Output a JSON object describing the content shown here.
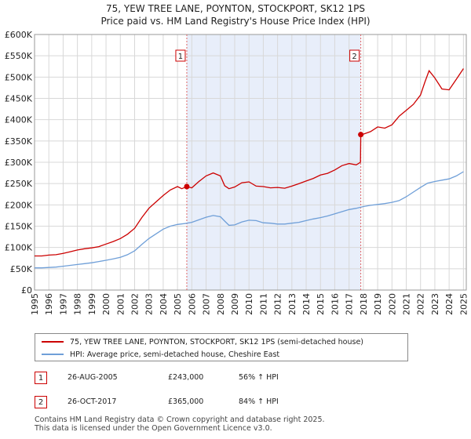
{
  "header": {
    "title": "75, YEW TREE LANE, POYNTON, STOCKPORT, SK12 1PS",
    "subtitle": "Price paid vs. HM Land Registry's House Price Index (HPI)"
  },
  "colors": {
    "price_line": "#cc0000",
    "hpi_line": "#6f9fd8",
    "shade": "#e8eefa",
    "marker_line": "#e06666",
    "grid": "#d8d8d8"
  },
  "chart_data": {
    "type": "line",
    "title": "75, YEW TREE LANE, POYNTON, STOCKPORT, SK12 1PS",
    "xlim": [
      1995,
      2025.2
    ],
    "ylim": [
      0,
      600000
    ],
    "y_ticks": [
      0,
      50000,
      100000,
      150000,
      200000,
      250000,
      300000,
      350000,
      400000,
      450000,
      500000,
      550000,
      600000
    ],
    "y_tick_labels": [
      "£0",
      "£50K",
      "£100K",
      "£150K",
      "£200K",
      "£250K",
      "£300K",
      "£350K",
      "£400K",
      "£450K",
      "£500K",
      "£550K",
      "£600K"
    ],
    "x_ticks": [
      1995,
      1996,
      1997,
      1998,
      1999,
      2000,
      2001,
      2002,
      2003,
      2004,
      2005,
      2006,
      2007,
      2008,
      2009,
      2010,
      2011,
      2012,
      2013,
      2014,
      2015,
      2016,
      2017,
      2018,
      2019,
      2020,
      2021,
      2022,
      2023,
      2024,
      2025
    ],
    "x_tick_labels": [
      "1995",
      "1996",
      "1997",
      "1998",
      "1999",
      "2000",
      "2001",
      "2002",
      "2003",
      "2004",
      "2005",
      "2006",
      "2007",
      "2008",
      "2009",
      "2010",
      "2011",
      "2012",
      "2013",
      "2014",
      "2015",
      "2016",
      "2017",
      "2018",
      "2019",
      "2020",
      "2021",
      "2022",
      "2023",
      "2024",
      "2025"
    ],
    "grid": true,
    "shaded_span": [
      2005.65,
      2017.82
    ],
    "markers": [
      {
        "label": "1",
        "x": 2005.65,
        "y": 243000
      },
      {
        "label": "2",
        "x": 2017.82,
        "y": 365000
      }
    ],
    "series": [
      {
        "name": "75, YEW TREE LANE, POYNTON, STOCKPORT, SK12 1PS (semi-detached house)",
        "x": [
          1995,
          1995.5,
          1996,
          1996.5,
          1997,
          1997.5,
          1998,
          1998.5,
          1999,
          1999.5,
          2000,
          2000.5,
          2001,
          2001.5,
          2002,
          2002.5,
          2003,
          2003.5,
          2004,
          2004.5,
          2005,
          2005.3,
          2005.65,
          2006,
          2006.5,
          2007,
          2007.5,
          2008,
          2008.3,
          2008.6,
          2009,
          2009.5,
          2010,
          2010.5,
          2011,
          2011.5,
          2012,
          2012.5,
          2013,
          2013.5,
          2014,
          2014.5,
          2015,
          2015.5,
          2016,
          2016.5,
          2017,
          2017.5,
          2017.8,
          2017.82,
          2018,
          2018.5,
          2019,
          2019.5,
          2020,
          2020.5,
          2021,
          2021.5,
          2022,
          2022.3,
          2022.6,
          2023,
          2023.5,
          2024,
          2024.5,
          2025
        ],
        "values": [
          80000,
          80000,
          82000,
          83000,
          86000,
          90000,
          94000,
          97000,
          99000,
          102000,
          108000,
          114000,
          121000,
          131000,
          145000,
          170000,
          192000,
          207000,
          222000,
          235000,
          243000,
          238000,
          243000,
          240000,
          255000,
          268000,
          275000,
          268000,
          245000,
          238000,
          242000,
          252000,
          254000,
          244000,
          243000,
          240000,
          241000,
          239000,
          244000,
          250000,
          256000,
          262000,
          270000,
          274000,
          282000,
          292000,
          297000,
          294000,
          300000,
          365000,
          366000,
          372000,
          383000,
          380000,
          388000,
          408000,
          422000,
          436000,
          458000,
          488000,
          515000,
          498000,
          472000,
          470000,
          495000,
          520000
        ]
      },
      {
        "name": "HPI: Average price, semi-detached house, Cheshire East",
        "x": [
          1995,
          1995.5,
          1996,
          1996.5,
          1997,
          1997.5,
          1998,
          1998.5,
          1999,
          1999.5,
          2000,
          2000.5,
          2001,
          2001.5,
          2002,
          2002.5,
          2003,
          2003.5,
          2004,
          2004.5,
          2005,
          2005.5,
          2006,
          2006.5,
          2007,
          2007.5,
          2008,
          2008.3,
          2008.6,
          2009,
          2009.5,
          2010,
          2010.5,
          2011,
          2011.5,
          2012,
          2012.5,
          2013,
          2013.5,
          2014,
          2014.5,
          2015,
          2015.5,
          2016,
          2016.5,
          2017,
          2017.5,
          2018,
          2018.5,
          2019,
          2019.5,
          2020,
          2020.5,
          2021,
          2021.5,
          2022,
          2022.5,
          2023,
          2023.5,
          2024,
          2024.5,
          2025
        ],
        "values": [
          52000,
          52000,
          53000,
          54000,
          56000,
          58000,
          60000,
          62000,
          64000,
          67000,
          70000,
          73000,
          77000,
          83000,
          92000,
          107000,
          121000,
          132000,
          143000,
          150000,
          154000,
          156000,
          159000,
          165000,
          171000,
          175000,
          172000,
          162000,
          152000,
          153000,
          160000,
          164000,
          163000,
          158000,
          157000,
          155000,
          155000,
          157000,
          159000,
          163000,
          167000,
          170000,
          174000,
          179000,
          184000,
          189000,
          192000,
          196000,
          199000,
          201000,
          203000,
          206000,
          210000,
          219000,
          230000,
          241000,
          251000,
          255000,
          258000,
          261000,
          268000,
          278000
        ]
      }
    ]
  },
  "legend": {
    "price_label": "75, YEW TREE LANE, POYNTON, STOCKPORT, SK12 1PS (semi-detached house)",
    "hpi_label": "HPI: Average price, semi-detached house, Cheshire East"
  },
  "transactions": [
    {
      "badge": "1",
      "date": "26-AUG-2005",
      "price": "£243,000",
      "hpi": "56% ↑ HPI"
    },
    {
      "badge": "2",
      "date": "26-OCT-2017",
      "price": "£365,000",
      "hpi": "84% ↑ HPI"
    }
  ],
  "footer": {
    "line1": "Contains HM Land Registry data © Crown copyright and database right 2025.",
    "line2": "This data is licensed under the Open Government Licence v3.0."
  }
}
